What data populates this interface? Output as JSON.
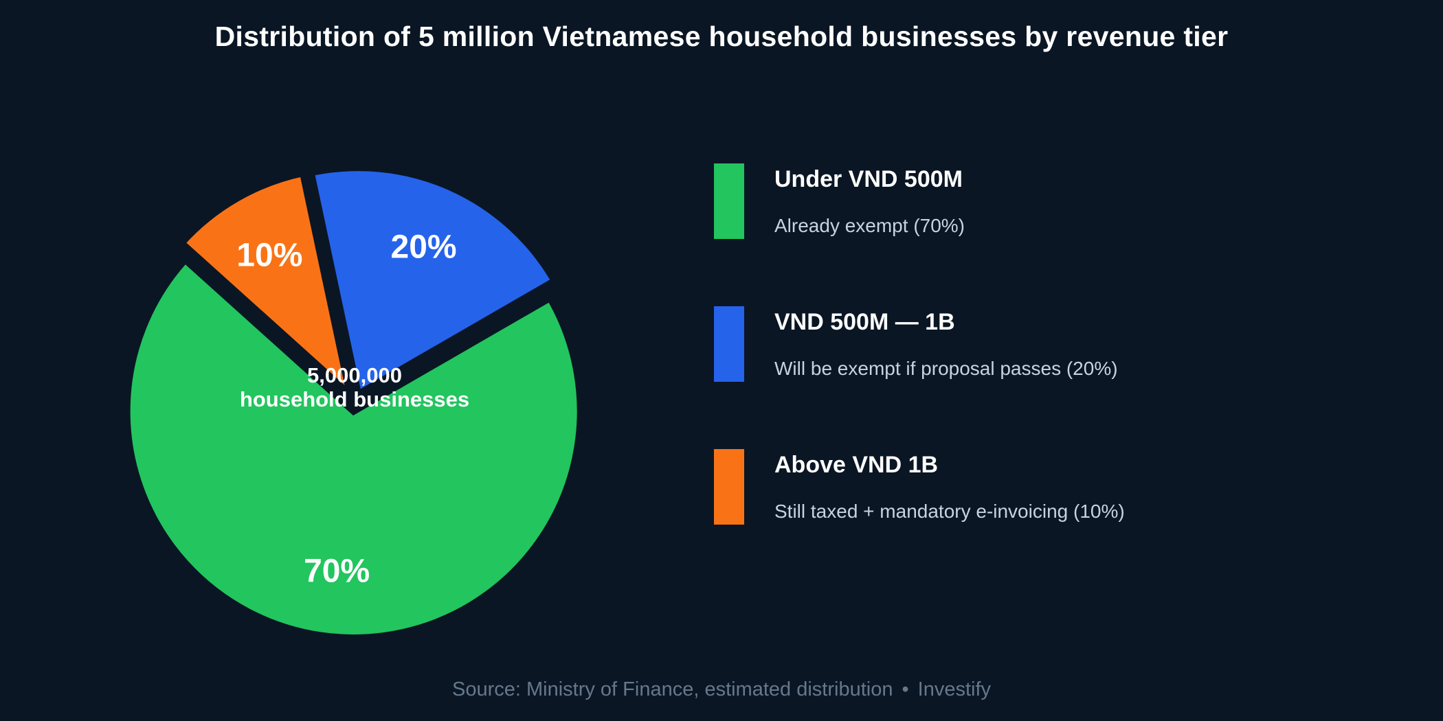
{
  "title": "Distribution of 5 million Vietnamese household businesses by revenue tier",
  "chart_data": {
    "type": "pie",
    "title": "Distribution of 5 million Vietnamese household businesses by revenue tier",
    "background": "#0b1624",
    "start_angle_deg": 138,
    "direction": "ccw",
    "legend_position": "right",
    "center_label": {
      "line1": "5,000,000",
      "line2": "household businesses"
    },
    "slices": [
      {
        "label": "Under VND 500M",
        "description": "Already exempt (70%)",
        "value": 70,
        "pct_label": "70%",
        "color": "#22c55e"
      },
      {
        "label": "VND 500M — 1B",
        "description": "Will be exempt if proposal passes (20%)",
        "value": 20,
        "pct_label": "20%",
        "color": "#2563eb"
      },
      {
        "label": "Above VND 1B",
        "description": "Still taxed + mandatory e-invoicing (10%)",
        "value": 10,
        "pct_label": "10%",
        "color": "#f97316"
      }
    ]
  },
  "source": {
    "text": "Source: Ministry of Finance, estimated distribution",
    "separator": "•",
    "brand": "Investify"
  }
}
